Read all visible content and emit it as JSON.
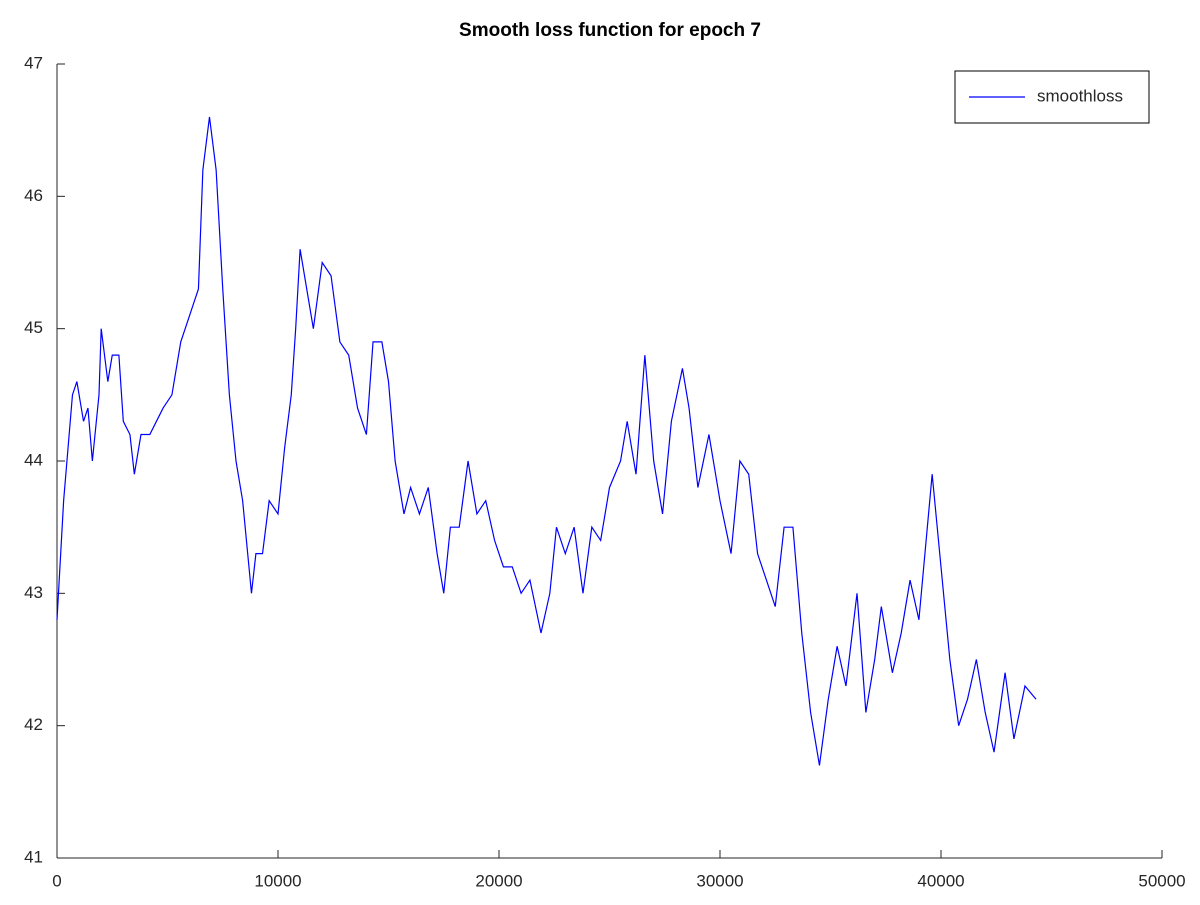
{
  "chart_data": {
    "type": "line",
    "title": "Smooth loss function for epoch 7",
    "x": [
      0,
      300,
      700,
      900,
      1200,
      1400,
      1600,
      1900,
      2000,
      2300,
      2500,
      2800,
      3000,
      3300,
      3500,
      3800,
      4200,
      4500,
      4800,
      5200,
      5600,
      6000,
      6200,
      6400,
      6600,
      6900,
      7200,
      7500,
      7800,
      8100,
      8400,
      8800,
      9000,
      9300,
      9600,
      10000,
      10300,
      10600,
      10800,
      11000,
      11300,
      11600,
      12000,
      12400,
      12800,
      13200,
      13600,
      14000,
      14300,
      14700,
      15000,
      15300,
      15700,
      16000,
      16400,
      16800,
      17200,
      17500,
      17800,
      18200,
      18600,
      19000,
      19400,
      19800,
      20200,
      20600,
      21000,
      21400,
      21900,
      22300,
      22600,
      23000,
      23400,
      23800,
      24200,
      24600,
      25000,
      25500,
      25800,
      26200,
      26600,
      27000,
      27400,
      27800,
      28300,
      28600,
      29000,
      29500,
      30000,
      30500,
      30900,
      31300,
      31700,
      32100,
      32500,
      32900,
      33300,
      33700,
      34100,
      34500,
      34900,
      35300,
      35700,
      36200,
      36600,
      37000,
      37300,
      37800,
      38200,
      38600,
      39000,
      39600,
      40000,
      40400,
      40800,
      41200,
      41600,
      42000,
      42400,
      42900,
      43300,
      43800,
      44300
    ],
    "series": [
      {
        "name": "smoothloss",
        "color": "#0000ff",
        "values": [
          42.8,
          43.7,
          44.5,
          44.6,
          44.3,
          44.4,
          44.0,
          44.5,
          45.0,
          44.6,
          44.8,
          44.8,
          44.3,
          44.2,
          43.9,
          44.2,
          44.2,
          44.3,
          44.4,
          44.5,
          44.9,
          45.1,
          45.2,
          45.3,
          46.2,
          46.6,
          46.2,
          45.3,
          44.5,
          44.0,
          43.7,
          43.0,
          43.3,
          43.3,
          43.7,
          43.6,
          44.1,
          44.5,
          45.0,
          45.6,
          45.3,
          45.0,
          45.5,
          45.4,
          44.9,
          44.8,
          44.4,
          44.2,
          44.9,
          44.9,
          44.6,
          44.0,
          43.6,
          43.8,
          43.6,
          43.8,
          43.3,
          43.0,
          43.5,
          43.5,
          44.0,
          43.6,
          43.7,
          43.4,
          43.2,
          43.2,
          43.0,
          43.1,
          42.7,
          43.0,
          43.5,
          43.3,
          43.5,
          43.0,
          43.5,
          43.4,
          43.8,
          44.0,
          44.3,
          43.9,
          44.8,
          44.0,
          43.6,
          44.3,
          44.7,
          44.4,
          43.8,
          44.2,
          43.7,
          43.3,
          44.0,
          43.9,
          43.3,
          43.1,
          42.9,
          43.5,
          43.5,
          42.7,
          42.1,
          41.7,
          42.2,
          42.6,
          42.3,
          43.0,
          42.1,
          42.5,
          42.9,
          42.4,
          42.7,
          43.1,
          42.8,
          43.9,
          43.2,
          42.5,
          42.0,
          42.2,
          42.5,
          42.1,
          41.8,
          42.4,
          41.9,
          42.3,
          42.2
        ]
      }
    ],
    "xlim": [
      0,
      50000
    ],
    "xticks": [
      0,
      10000,
      20000,
      30000,
      40000,
      50000
    ],
    "ylim": [
      41,
      47
    ],
    "yticks": [
      41,
      42,
      43,
      44,
      45,
      46,
      47
    ],
    "legend": "top-right"
  }
}
